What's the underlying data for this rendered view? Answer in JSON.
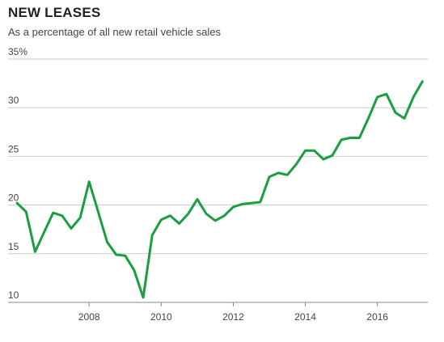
{
  "chart_data": {
    "type": "line",
    "title": "NEW LEASES",
    "subtitle": "As a percentage of all new retail vehicle sales",
    "xlabel": "",
    "ylabel": "",
    "xlim": [
      2005.75,
      2017.4
    ],
    "ylim": [
      10,
      35
    ],
    "y_ticks": [
      10,
      15,
      20,
      25,
      30,
      35
    ],
    "y_tick_labels": [
      "10",
      "15",
      "20",
      "25",
      "30",
      "35%"
    ],
    "x_ticks": [
      2008,
      2010,
      2012,
      2014,
      2016
    ],
    "x_tick_labels": [
      "2008",
      "2010",
      "2012",
      "2014",
      "2016"
    ],
    "grid": true,
    "colors": {
      "line": "#1a9e3f",
      "grid": "#cccccc",
      "baseline": "#888888"
    },
    "series": [
      {
        "x": [
          2006.0,
          2006.25,
          2006.5,
          2006.75,
          2007.0,
          2007.25,
          2007.5,
          2007.75,
          2008.0,
          2008.25,
          2008.5,
          2008.75,
          2009.0,
          2009.25,
          2009.5,
          2009.75,
          2010.0,
          2010.25,
          2010.5,
          2010.75,
          2011.0,
          2011.25,
          2011.5,
          2011.75,
          2012.0,
          2012.25,
          2012.5,
          2012.75,
          2013.0,
          2013.25,
          2013.5,
          2013.75,
          2014.0,
          2014.25,
          2014.5,
          2014.75,
          2015.0,
          2015.25,
          2015.5,
          2015.75,
          2016.0,
          2016.25,
          2016.5,
          2016.75,
          2017.0,
          2017.25
        ],
        "values": [
          20.2,
          19.3,
          15.2,
          17.2,
          19.2,
          18.9,
          17.6,
          18.7,
          22.4,
          19.3,
          16.2,
          14.9,
          14.8,
          13.3,
          10.5,
          16.9,
          18.5,
          18.9,
          18.1,
          19.1,
          20.6,
          19.1,
          18.4,
          18.9,
          19.8,
          20.1,
          20.2,
          20.3,
          22.9,
          23.3,
          23.1,
          24.2,
          25.6,
          25.6,
          24.7,
          25.1,
          26.7,
          26.9,
          26.9,
          28.9,
          31.1,
          31.4,
          29.5,
          28.9,
          31.1,
          32.7
        ]
      }
    ]
  }
}
